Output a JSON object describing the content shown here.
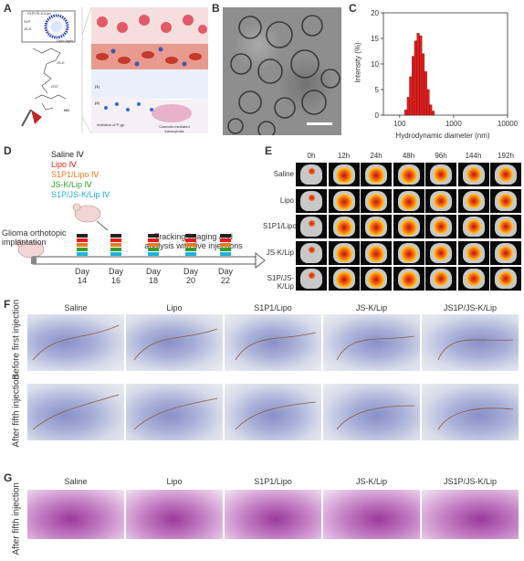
{
  "panels": {
    "A": {
      "label": "A",
      "liposome_title": "S1P/JS-K/Lipo",
      "liposome_labels": [
        "S1P",
        "JS-K",
        "Lipid layer"
      ],
      "small_labels": [
        "JS-K",
        "GST",
        "NO"
      ],
      "step_labels": [
        "(1)",
        "(2)"
      ],
      "captions": [
        "Inhibition of P-gp",
        "Caveolin-mediated transcytosis"
      ]
    },
    "B": {
      "label": "B"
    },
    "C": {
      "label": "C",
      "chart_data": {
        "type": "bar",
        "xlabel": "Hydrodynamic diameter (nm)",
        "ylabel": "Intensity (%)",
        "xscale": "log",
        "xlim": [
          50,
          10000
        ],
        "ylim": [
          0,
          20
        ],
        "xticks": [
          "100",
          "1000",
          "10000"
        ],
        "yticks": [
          "0",
          "5",
          "10",
          "15",
          "20"
        ],
        "color": "#e02020",
        "bins": [
          {
            "x": 130,
            "y": 1.0
          },
          {
            "x": 145,
            "y": 3.5
          },
          {
            "x": 160,
            "y": 7.5
          },
          {
            "x": 178,
            "y": 11.5
          },
          {
            "x": 198,
            "y": 14.5
          },
          {
            "x": 220,
            "y": 16.0
          },
          {
            "x": 245,
            "y": 15.5
          },
          {
            "x": 272,
            "y": 12.0
          },
          {
            "x": 303,
            "y": 8.5
          },
          {
            "x": 337,
            "y": 5.0
          },
          {
            "x": 375,
            "y": 2.0
          },
          {
            "x": 417,
            "y": 0.8
          }
        ]
      }
    },
    "D": {
      "label": "D",
      "groups": [
        {
          "text": "Saline Ⅳ",
          "color": "#222222"
        },
        {
          "text": "Lipo Ⅳ",
          "color": "#e02020"
        },
        {
          "text": "S1P1/Lipo Ⅳ",
          "color": "#f07820"
        },
        {
          "text": "JS-K/Lip Ⅳ",
          "color": "#30a030"
        },
        {
          "text": "S1P/JS-K/Lip Ⅳ",
          "color": "#20b0e0"
        }
      ],
      "implant_text": "Glioma orthotopic implantation",
      "tracking_text": "Tracking imaging and analysis with five injections",
      "days": [
        {
          "label": "Day",
          "num": "14"
        },
        {
          "label": "Day",
          "num": "16"
        },
        {
          "label": "Day",
          "num": "18"
        },
        {
          "label": "Day",
          "num": "20"
        },
        {
          "label": "Day",
          "num": "22"
        }
      ]
    },
    "E": {
      "label": "E",
      "times": [
        "0h",
        "12h",
        "24h",
        "48h",
        "96h",
        "144h",
        "192h"
      ],
      "rows": [
        "Saline",
        "Lipo",
        "S1P1/Lipo",
        "JS-K/Lip",
        "S1P/JS-K/Lip"
      ]
    },
    "F": {
      "label": "F",
      "columns": [
        "Saline",
        "Lipo",
        "S1P1/Lipo",
        "JS-K/Lip",
        "JS1P/JS-K/Lip"
      ],
      "rows": [
        "Before first injection",
        "After fifth injection"
      ]
    },
    "G": {
      "label": "G",
      "columns": [
        "Saline",
        "Lipo",
        "S1P1/Lipo",
        "JS-K/Lip",
        "JS1P/JS-K/Lip"
      ],
      "rows": [
        "After fifth injection"
      ]
    }
  }
}
